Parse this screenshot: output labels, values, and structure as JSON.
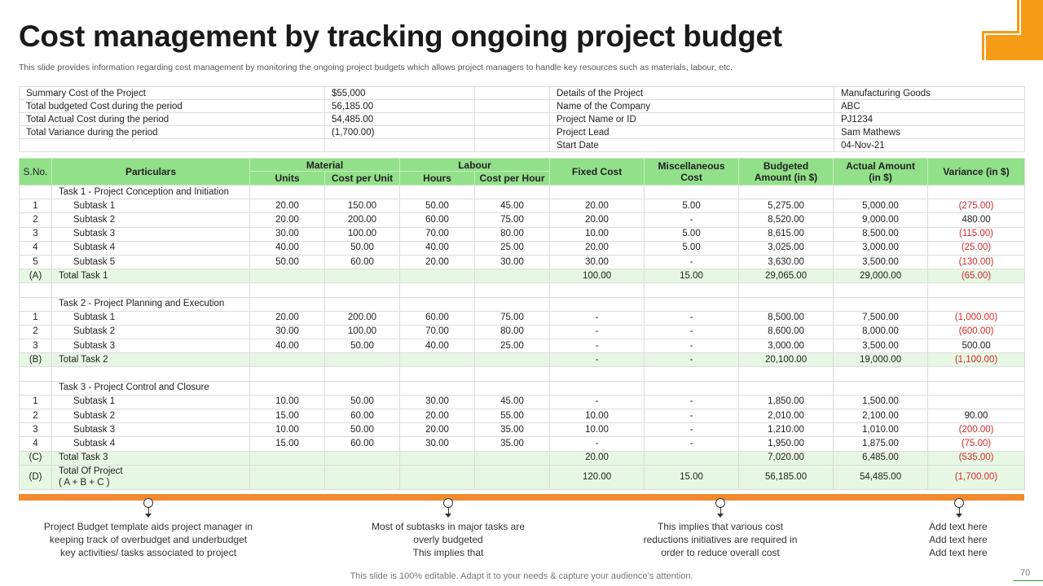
{
  "title": "Cost management by tracking ongoing project budget",
  "subtitle": "This slide provides information regarding cost management by monitoring the ongoing project budgets which allows project managers to handle key resources such as materials, labour, etc.",
  "summary": {
    "left": [
      {
        "label": "Summary Cost of the Project",
        "value": "$55,000"
      },
      {
        "label": "Total budgeted Cost during the period",
        "value": "56,185.00"
      },
      {
        "label": "Total Actual Cost during the period",
        "value": "54,485.00"
      },
      {
        "label": "Total Variance during the period",
        "value": "(1,700.00)"
      },
      {
        "label": "",
        "value": ""
      }
    ],
    "right": [
      {
        "label": "Details of the Project",
        "value": "Manufacturing Goods"
      },
      {
        "label": "Name of the Company",
        "value": "ABC"
      },
      {
        "label": "Project Name or ID",
        "value": "PJ1234"
      },
      {
        "label": "Project Lead",
        "value": "Sam Mathews"
      },
      {
        "label": "Start Date",
        "value": "04-Nov-21"
      }
    ]
  },
  "headers": {
    "sno": "S.No.",
    "particulars": "Particulars",
    "material": "Material",
    "units": "Units",
    "cost_per_unit": "Cost per Unit",
    "labour": "Labour",
    "hours": "Hours",
    "cost_per_hour": "Cost per Hour",
    "fixed_cost": "Fixed Cost",
    "misc_line1": "Miscellaneous",
    "misc_line2": "Cost",
    "budget_line1": "Budgeted",
    "budget_line2": "Amount (in $)",
    "actual_line1": "Actual Amount",
    "actual_line2": "(in $)",
    "variance": "Variance (in $)"
  },
  "rows": [
    {
      "type": "task",
      "sno": "",
      "particular": "Task 1 - Project Conception and Initiation",
      "cells": [
        "",
        "",
        "",
        "",
        "",
        "",
        "",
        "",
        ""
      ]
    },
    {
      "type": "sub",
      "sno": "1",
      "particular": "Subtask 1",
      "cells": [
        "20.00",
        "150.00",
        "50.00",
        "45.00",
        "20.00",
        "5.00",
        "5,275.00",
        "5,000.00",
        "(275.00)"
      ]
    },
    {
      "type": "sub",
      "sno": "2",
      "particular": "Subtask 2",
      "cells": [
        "20.00",
        "200.00",
        "60.00",
        "75.00",
        "20.00",
        "-",
        "8,520.00",
        "9,000.00",
        "480.00"
      ]
    },
    {
      "type": "sub",
      "sno": "3",
      "particular": "Subtask 3",
      "cells": [
        "30.00",
        "100.00",
        "70.00",
        "80.00",
        "10.00",
        "5.00",
        "8,615.00",
        "8,500.00",
        "(115.00)"
      ]
    },
    {
      "type": "sub",
      "sno": "4",
      "particular": "Subtask 4",
      "cells": [
        "40.00",
        "50.00",
        "40.00",
        "25.00",
        "20.00",
        "5.00",
        "3,025.00",
        "3,000.00",
        "(25.00)"
      ]
    },
    {
      "type": "sub",
      "sno": "5",
      "particular": "Subtask 5",
      "cells": [
        "50.00",
        "60.00",
        "20.00",
        "30.00",
        "30.00",
        "-",
        "3,630.00",
        "3,500.00",
        "(130.00)"
      ]
    },
    {
      "type": "total",
      "sno": "(A)",
      "particular": "Total Task 1",
      "cells": [
        "",
        "",
        "",
        "",
        "100.00",
        "15.00",
        "29,065.00",
        "29,000.00",
        "(65.00)"
      ]
    },
    {
      "type": "blank",
      "sno": "",
      "particular": "",
      "cells": [
        "",
        "",
        "",
        "",
        "",
        "",
        "",
        "",
        ""
      ]
    },
    {
      "type": "task",
      "sno": "",
      "particular": "Task 2 - Project Planning and Execution",
      "cells": [
        "",
        "",
        "",
        "",
        "",
        "",
        "",
        "",
        ""
      ]
    },
    {
      "type": "sub",
      "sno": "1",
      "particular": "Subtask 1",
      "cells": [
        "20.00",
        "200.00",
        "60.00",
        "75.00",
        "-",
        "-",
        "8,500.00",
        "7,500.00",
        "(1,000.00)"
      ]
    },
    {
      "type": "sub",
      "sno": "2",
      "particular": "Subtask 2",
      "cells": [
        "30.00",
        "100.00",
        "70.00",
        "80.00",
        "-",
        "-",
        "8,600.00",
        "8,000.00",
        "(600.00)"
      ]
    },
    {
      "type": "sub",
      "sno": "3",
      "particular": "Subtask 3",
      "cells": [
        "40.00",
        "50.00",
        "40.00",
        "25.00",
        "-",
        "-",
        "3,000.00",
        "3,500.00",
        "500.00"
      ]
    },
    {
      "type": "total",
      "sno": "(B)",
      "particular": "Total Task 2",
      "cells": [
        "",
        "",
        "",
        "",
        "-",
        "-",
        "20,100.00",
        "19,000.00",
        "(1,100.00)"
      ]
    },
    {
      "type": "blank",
      "sno": "",
      "particular": "",
      "cells": [
        "",
        "",
        "",
        "",
        "",
        "",
        "",
        "",
        ""
      ]
    },
    {
      "type": "task",
      "sno": "",
      "particular": "Task 3 - Project Control and Closure",
      "cells": [
        "",
        "",
        "",
        "",
        "",
        "",
        "",
        "",
        ""
      ]
    },
    {
      "type": "sub",
      "sno": "1",
      "particular": "Subtask 1",
      "cells": [
        "10.00",
        "50.00",
        "30.00",
        "45.00",
        "-",
        "-",
        "1,850.00",
        "1,500.00",
        ""
      ]
    },
    {
      "type": "sub",
      "sno": "2",
      "particular": "Subtask 2",
      "cells": [
        "15.00",
        "60.00",
        "20.00",
        "55.00",
        "10.00",
        "-",
        "2,010.00",
        "2,100.00",
        "90.00"
      ]
    },
    {
      "type": "sub",
      "sno": "3",
      "particular": "Subtask 3",
      "cells": [
        "10.00",
        "50.00",
        "20.00",
        "35.00",
        "10.00",
        "-",
        "1,210.00",
        "1,010.00",
        "(200.00)"
      ]
    },
    {
      "type": "sub",
      "sno": "4",
      "particular": "Subtask 4",
      "cells": [
        "15.00",
        "60.00",
        "30.00",
        "35.00",
        "-",
        "-",
        "1,950.00",
        "1,875.00",
        "(75.00)"
      ]
    },
    {
      "type": "total",
      "sno": "(C)",
      "particular": "Total Task 3",
      "cells": [
        "",
        "",
        "",
        "",
        "20.00",
        "",
        "7,020.00",
        "6,485.00",
        "(535.00)"
      ]
    },
    {
      "type": "grand",
      "sno": "(D)",
      "particular": "Total Of Project",
      "particular2": "( A + B + C )",
      "cells": [
        "",
        "",
        "",
        "",
        "120.00",
        "15.00",
        "56,185.00",
        "54,485.00",
        "(1,700.00)"
      ]
    }
  ],
  "notes": [
    {
      "lines": [
        "Project Budget template aids project manager in",
        "keeping track of overbudget  and underbudget",
        "key activities/ tasks associated to project"
      ]
    },
    {
      "lines": [
        "Most of subtasks in major tasks are",
        "overly budgeted",
        "This implies that"
      ]
    },
    {
      "lines": [
        "This implies that various cost",
        "reductions initiatives are required in",
        "order to reduce overall  cost"
      ]
    },
    {
      "lines": [
        "Add text here",
        "Add text here",
        "Add text here"
      ]
    }
  ],
  "footer": "This slide is 100% editable. Adapt it to your needs & capture your audience’s attention.",
  "page_number": "70",
  "colors": {
    "accent_orange": "#f28a2e",
    "header_green": "#92e08a",
    "total_row_green": "#e6f7e3",
    "negative_red": "#d42a2a"
  }
}
